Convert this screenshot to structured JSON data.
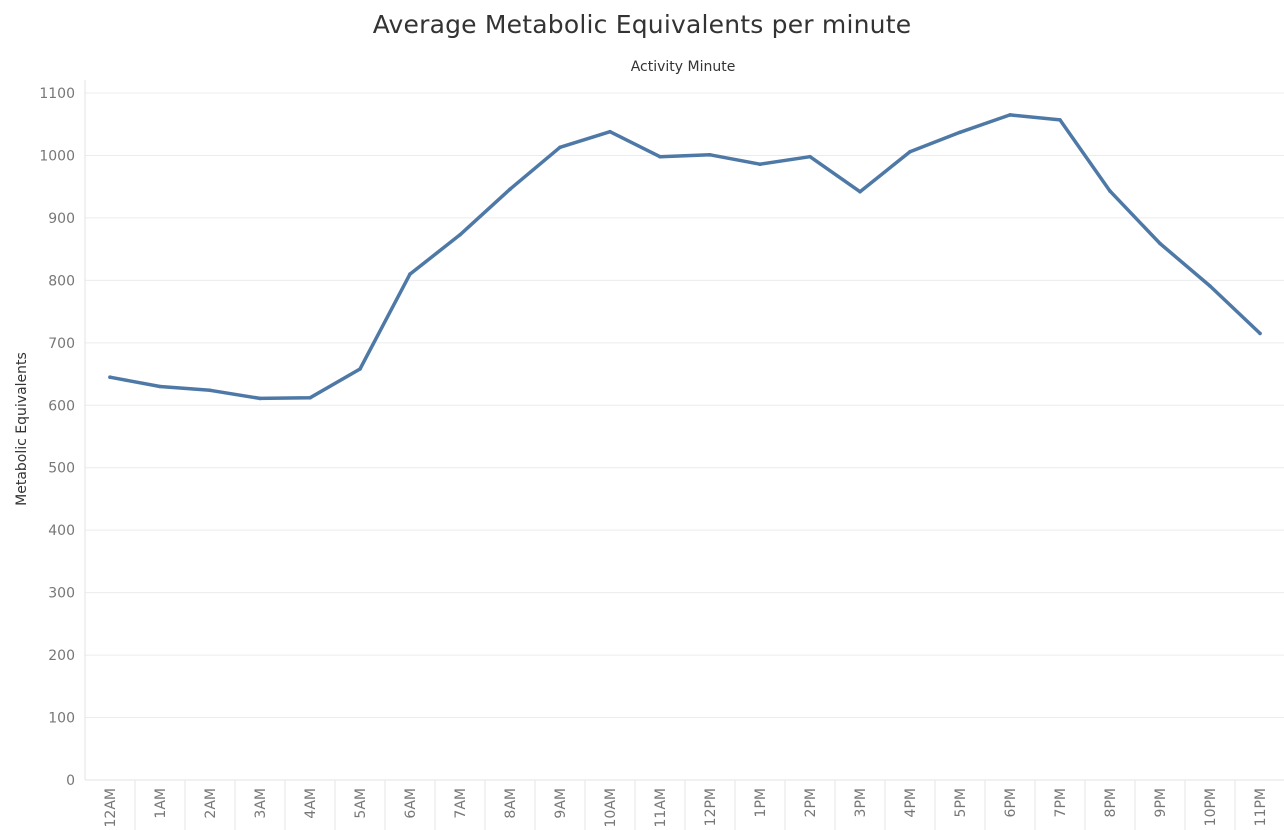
{
  "chart_data": {
    "type": "line",
    "title": "Average Metabolic Equivalents per minute",
    "subtitle": "Activity Minute",
    "xlabel": "",
    "ylabel": "Metabolic Equivalents",
    "ylim": [
      0,
      1100
    ],
    "yticks": [
      0,
      100,
      200,
      300,
      400,
      500,
      600,
      700,
      800,
      900,
      1000,
      1100
    ],
    "grid": true,
    "categories": [
      "12AM",
      "1AM",
      "2AM",
      "3AM",
      "4AM",
      "5AM",
      "6AM",
      "7AM",
      "8AM",
      "9AM",
      "10AM",
      "11AM",
      "12PM",
      "1PM",
      "2PM",
      "3PM",
      "4PM",
      "5PM",
      "6PM",
      "7PM",
      "8PM",
      "9PM",
      "10PM",
      "11PM"
    ],
    "series": [
      {
        "color": "#4e79a7",
        "values": [
          645,
          630,
          624,
          611,
          612,
          658,
          810,
          873,
          946,
          1013,
          1038,
          998,
          1001,
          986,
          998,
          942,
          1006,
          1037,
          1065,
          1057,
          943,
          859,
          791,
          715
        ]
      }
    ]
  }
}
